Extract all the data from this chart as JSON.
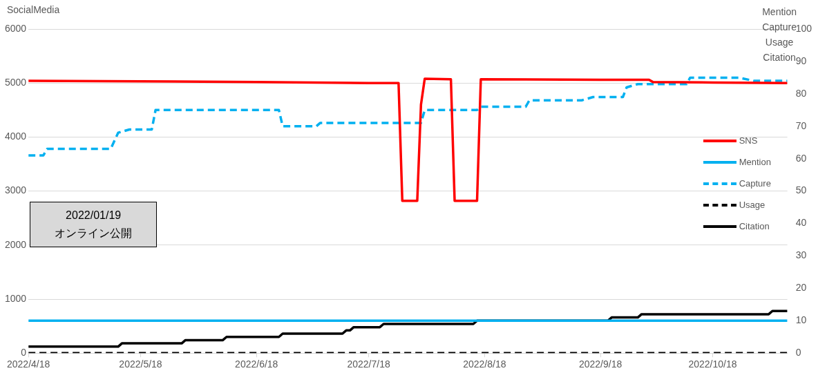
{
  "chart_data": {
    "type": "line",
    "xlim": [
      "2022-04-18",
      "2022-11-07"
    ],
    "xticks": [
      {
        "value": "2022-04-18",
        "label": "2022/4/18"
      },
      {
        "value": "2022-05-18",
        "label": "2022/5/18"
      },
      {
        "value": "2022-06-18",
        "label": "2022/6/18"
      },
      {
        "value": "2022-07-18",
        "label": "2022/7/18"
      },
      {
        "value": "2022-08-18",
        "label": "2022/8/18"
      },
      {
        "value": "2022-09-18",
        "label": "2022/9/18"
      },
      {
        "value": "2022-10-18",
        "label": "2022/10/18"
      }
    ],
    "ylabel": "SocialMedia",
    "y2label": "Mention\nCapture\nUsage\nCitation",
    "ylim": [
      0,
      6000
    ],
    "yticks": [
      0,
      1000,
      2000,
      3000,
      4000,
      5000,
      6000
    ],
    "y2lim": [
      0,
      100
    ],
    "y2ticks": [
      0,
      10,
      20,
      30,
      40,
      50,
      60,
      70,
      80,
      90,
      100
    ],
    "grid": "y",
    "legend": "right",
    "marker": "none",
    "annotations": [
      "2022/01/19\nオンライン公開"
    ],
    "series": [
      {
        "name": "SNS",
        "color": "#ff0000",
        "line_style": "solid",
        "x": [
          "2022-04-18",
          "2022-05-18",
          "2022-06-18",
          "2022-07-18",
          "2022-07-26",
          "2022-07-27",
          "2022-07-31",
          "2022-08-01",
          "2022-08-02",
          "2022-08-09",
          "2022-08-10",
          "2022-08-16",
          "2022-08-17",
          "2022-09-18",
          "2022-10-01",
          "2022-10-02",
          "2022-10-18",
          "2022-11-07"
        ],
        "values": [
          5040,
          5030,
          5020,
          5000,
          5000,
          2820,
          2820,
          4600,
          5080,
          5070,
          2820,
          2820,
          5070,
          5060,
          5060,
          5020,
          5010,
          5000
        ]
      },
      {
        "name": "Mention",
        "color": "#00b0f0",
        "line_style": "solid",
        "axis": "y2",
        "x": [
          "2022-04-18",
          "2022-11-07"
        ],
        "values": [
          10,
          10
        ]
      },
      {
        "name": "Capture",
        "color": "#00b0f0",
        "line_style": "dashed",
        "axis": "y2",
        "x": [
          "2022-04-18",
          "2022-04-22",
          "2022-04-23",
          "2022-05-10",
          "2022-05-12",
          "2022-05-15",
          "2022-05-21",
          "2022-05-22",
          "2022-06-24",
          "2022-06-25",
          "2022-07-04",
          "2022-07-05",
          "2022-08-01",
          "2022-08-02",
          "2022-08-16",
          "2022-08-17",
          "2022-08-29",
          "2022-08-30",
          "2022-09-13",
          "2022-09-16",
          "2022-09-24",
          "2022-09-25",
          "2022-09-28",
          "2022-10-11",
          "2022-10-12",
          "2022-10-25",
          "2022-10-29",
          "2022-11-07"
        ],
        "values": [
          61,
          61,
          63,
          63,
          68,
          69,
          69,
          75,
          75,
          70,
          70,
          71,
          71,
          75,
          75,
          76,
          76,
          78,
          78,
          79,
          79,
          82,
          83,
          83,
          85,
          85,
          84,
          84
        ]
      },
      {
        "name": "Usage",
        "color": "#000000",
        "line_style": "dashed",
        "axis": "y2",
        "x": [
          "2022-04-18",
          "2022-11-07"
        ],
        "values": [
          0,
          0
        ]
      },
      {
        "name": "Citation",
        "color": "#000000",
        "line_style": "solid",
        "axis": "y2",
        "x": [
          "2022-04-18",
          "2022-05-12",
          "2022-05-13",
          "2022-05-29",
          "2022-05-30",
          "2022-06-09",
          "2022-06-10",
          "2022-06-24",
          "2022-06-25",
          "2022-07-11",
          "2022-07-12",
          "2022-07-13",
          "2022-07-14",
          "2022-07-21",
          "2022-07-22",
          "2022-08-15",
          "2022-08-16",
          "2022-09-20",
          "2022-09-21",
          "2022-09-28",
          "2022-09-29",
          "2022-11-02",
          "2022-11-03",
          "2022-11-07"
        ],
        "values": [
          2,
          2,
          3,
          3,
          4,
          4,
          5,
          5,
          6,
          6,
          7,
          7,
          8,
          8,
          9,
          9,
          10,
          10,
          11,
          11,
          12,
          12,
          13,
          13
        ]
      }
    ]
  }
}
